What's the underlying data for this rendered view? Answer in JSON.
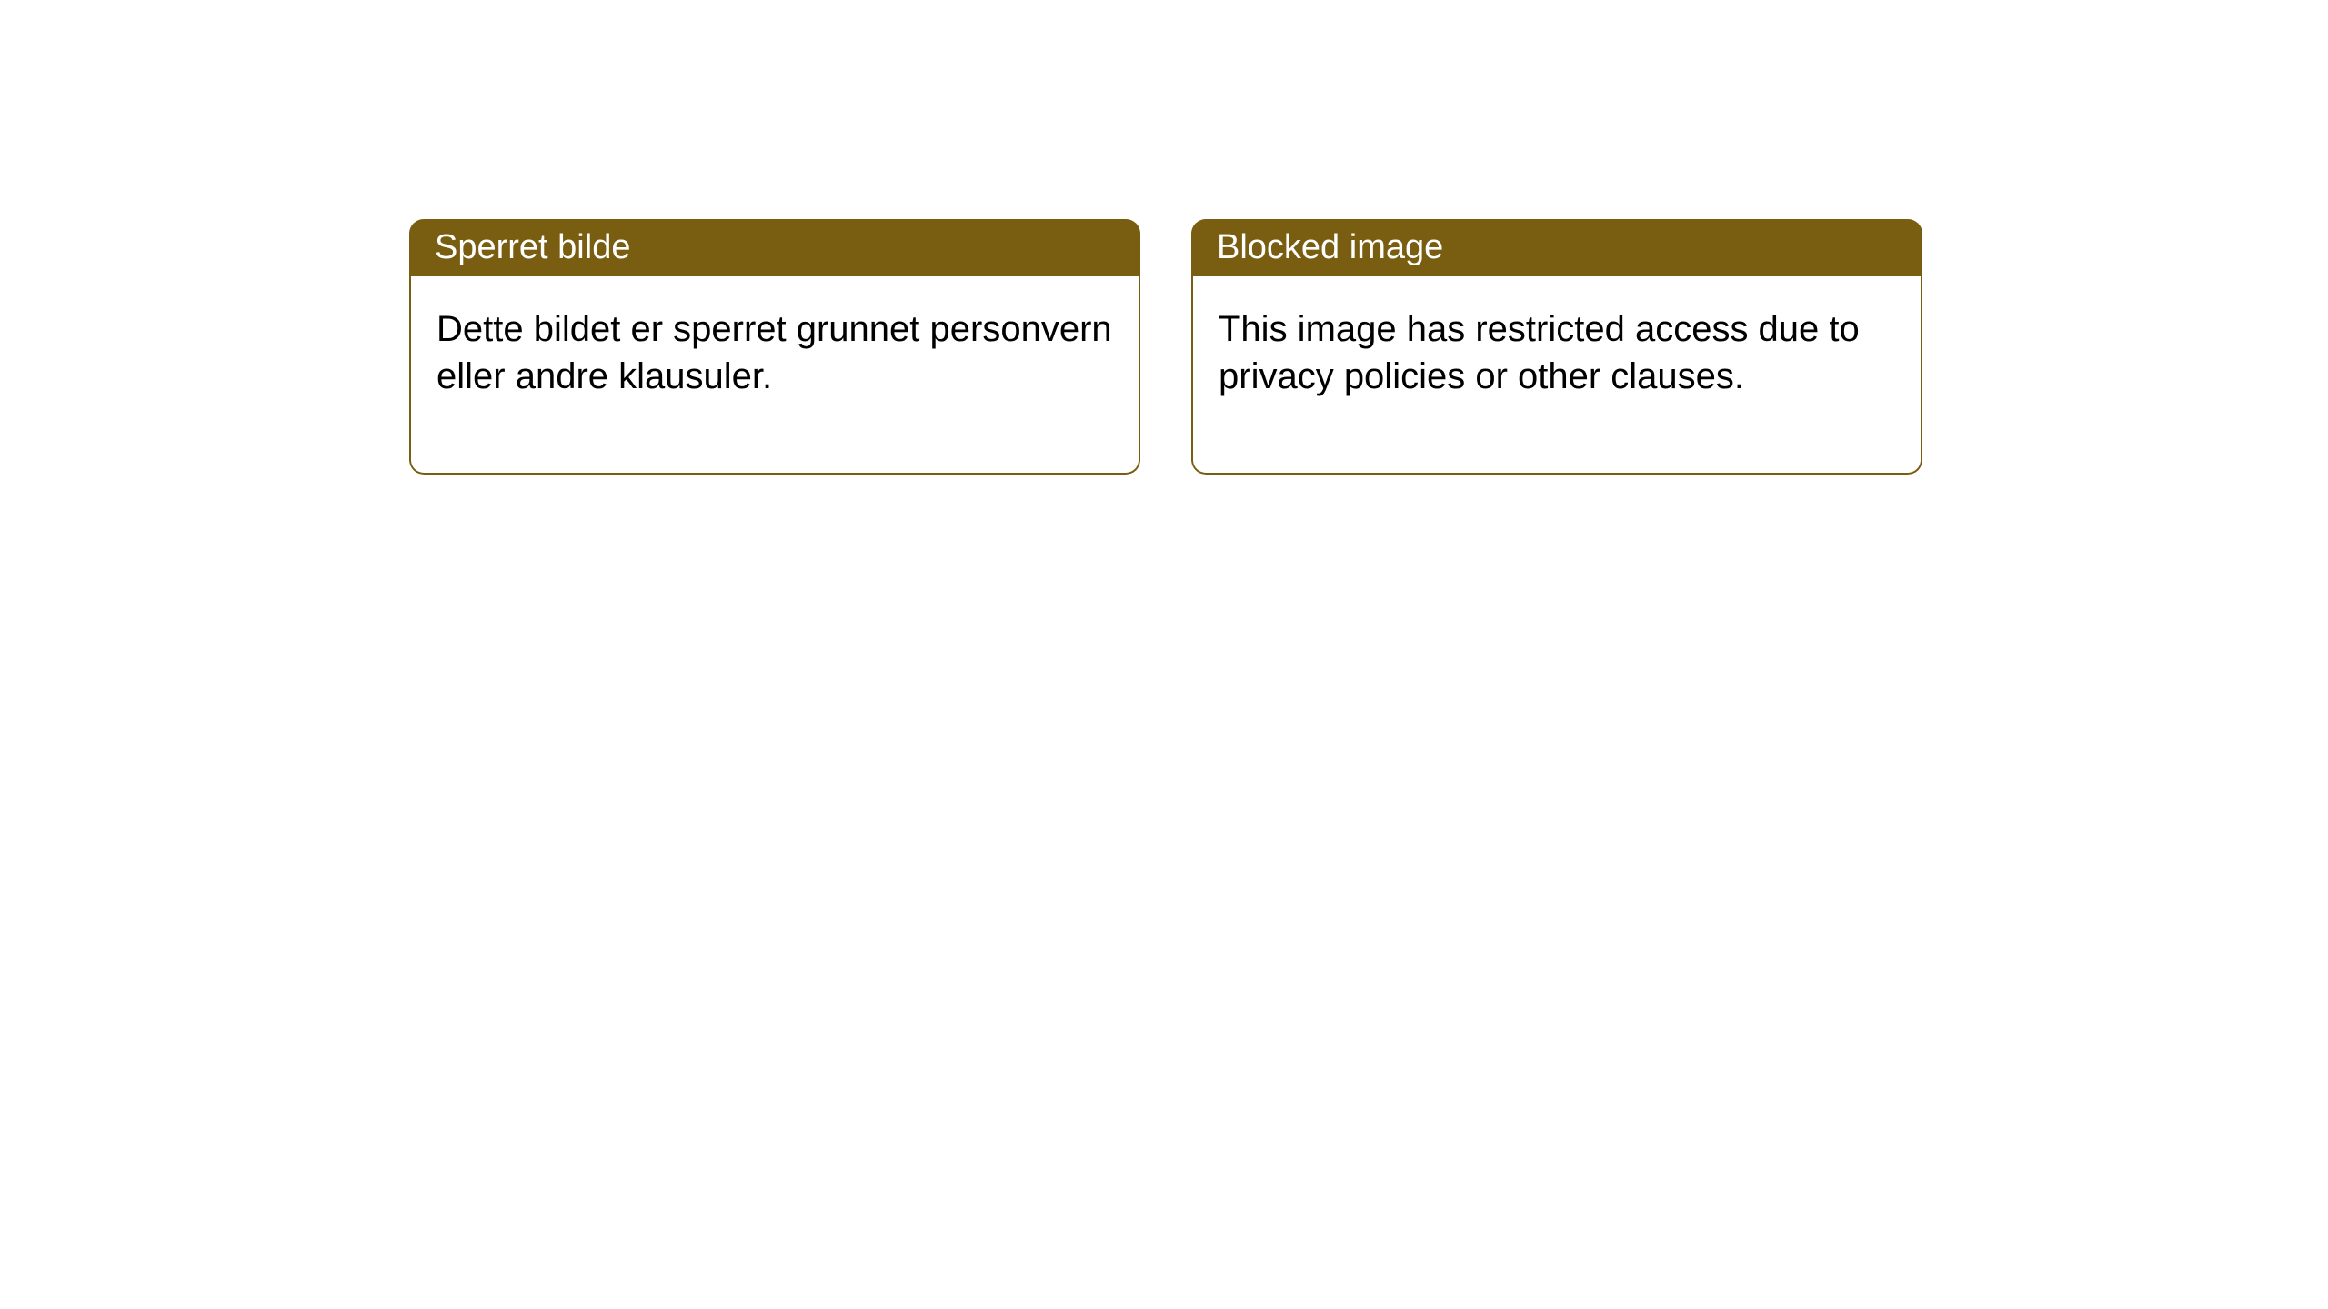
{
  "style": {
    "header_bg_color": "#795e11",
    "header_text_color": "#ffffff",
    "body_bg_color": "#ffffff",
    "border_color": "#795e11",
    "border_width": 2,
    "border_radius": 16,
    "header_fontsize": 38,
    "body_fontsize": 40,
    "body_text_color": "#000000"
  },
  "cards": [
    {
      "title": "Sperret bilde",
      "body": "Dette bildet er sperret grunnet personvern eller andre klausuler."
    },
    {
      "title": "Blocked image",
      "body": "This image has restricted access due to privacy policies or other clauses."
    }
  ]
}
